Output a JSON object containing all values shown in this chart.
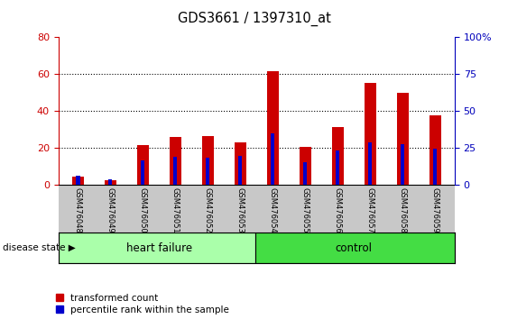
{
  "title": "GDS3661 / 1397310_at",
  "samples": [
    "GSM476048",
    "GSM476049",
    "GSM476050",
    "GSM476051",
    "GSM476052",
    "GSM476053",
    "GSM476054",
    "GSM476055",
    "GSM476056",
    "GSM476057",
    "GSM476058",
    "GSM476059"
  ],
  "red_values": [
    4.5,
    2.8,
    21.5,
    26.0,
    26.5,
    23.0,
    61.5,
    20.5,
    31.5,
    55.0,
    49.5,
    37.5
  ],
  "blue_values": [
    5.0,
    3.0,
    13.5,
    15.0,
    14.5,
    15.5,
    28.0,
    12.5,
    18.5,
    23.0,
    22.0,
    19.5
  ],
  "red_color": "#cc0000",
  "blue_color": "#0000cc",
  "ylim_left": [
    0,
    80
  ],
  "ylim_right": [
    0,
    100
  ],
  "yticks_left": [
    0,
    20,
    40,
    60,
    80
  ],
  "ytick_labels_left": [
    "0",
    "20",
    "40",
    "60",
    "80"
  ],
  "yticks_right": [
    0,
    25,
    50,
    75,
    100
  ],
  "ytick_labels_right": [
    "0",
    "25",
    "50",
    "75",
    "100%"
  ],
  "red_bar_width": 0.35,
  "blue_bar_width": 0.12,
  "heart_failure_color": "#aaffaa",
  "control_color": "#44dd44",
  "xtick_bg_color": "#c8c8c8",
  "plot_bg_color": "#ffffff",
  "grid_color": "#000000",
  "disease_state_label": "disease state",
  "legend_red_label": "transformed count",
  "legend_blue_label": "percentile rank within the sample",
  "tick_color_left": "#cc0000",
  "tick_color_right": "#0000bb"
}
